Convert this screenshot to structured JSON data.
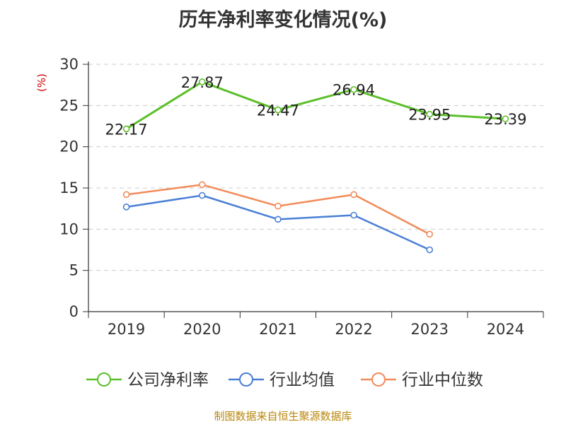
{
  "title": "历年净利率变化情况(%)",
  "unit_label": "(%)",
  "source": "制图数据来自恒生聚源数据库",
  "colors": {
    "company": "#5cbf2a",
    "industry_avg": "#4a7fd6",
    "industry_median": "#f28b5a",
    "grid": "#cccccc",
    "axis": "#333333"
  },
  "chart_data": {
    "type": "line",
    "title": "历年净利率变化情况(%)",
    "xlabel": "",
    "ylabel": "(%)",
    "categories": [
      "2019",
      "2020",
      "2021",
      "2022",
      "2023",
      "2024"
    ],
    "ylim": [
      0,
      30
    ],
    "yticks": [
      "0",
      "5",
      "10",
      "15",
      "20",
      "25",
      "30"
    ],
    "grid": true,
    "legend_position": "bottom",
    "series": [
      {
        "name": "公司净利率",
        "values": [
          22.17,
          27.87,
          24.47,
          26.94,
          23.95,
          23.39
        ],
        "labels": [
          "22.17",
          "27.87",
          "24.47",
          "26.94",
          "23.95",
          "23.39"
        ]
      },
      {
        "name": "行业均值",
        "values": [
          12.7,
          14.1,
          11.2,
          11.7,
          7.5,
          null
        ]
      },
      {
        "name": "行业中位数",
        "values": [
          14.2,
          15.4,
          12.8,
          14.2,
          9.4,
          null
        ]
      }
    ]
  }
}
